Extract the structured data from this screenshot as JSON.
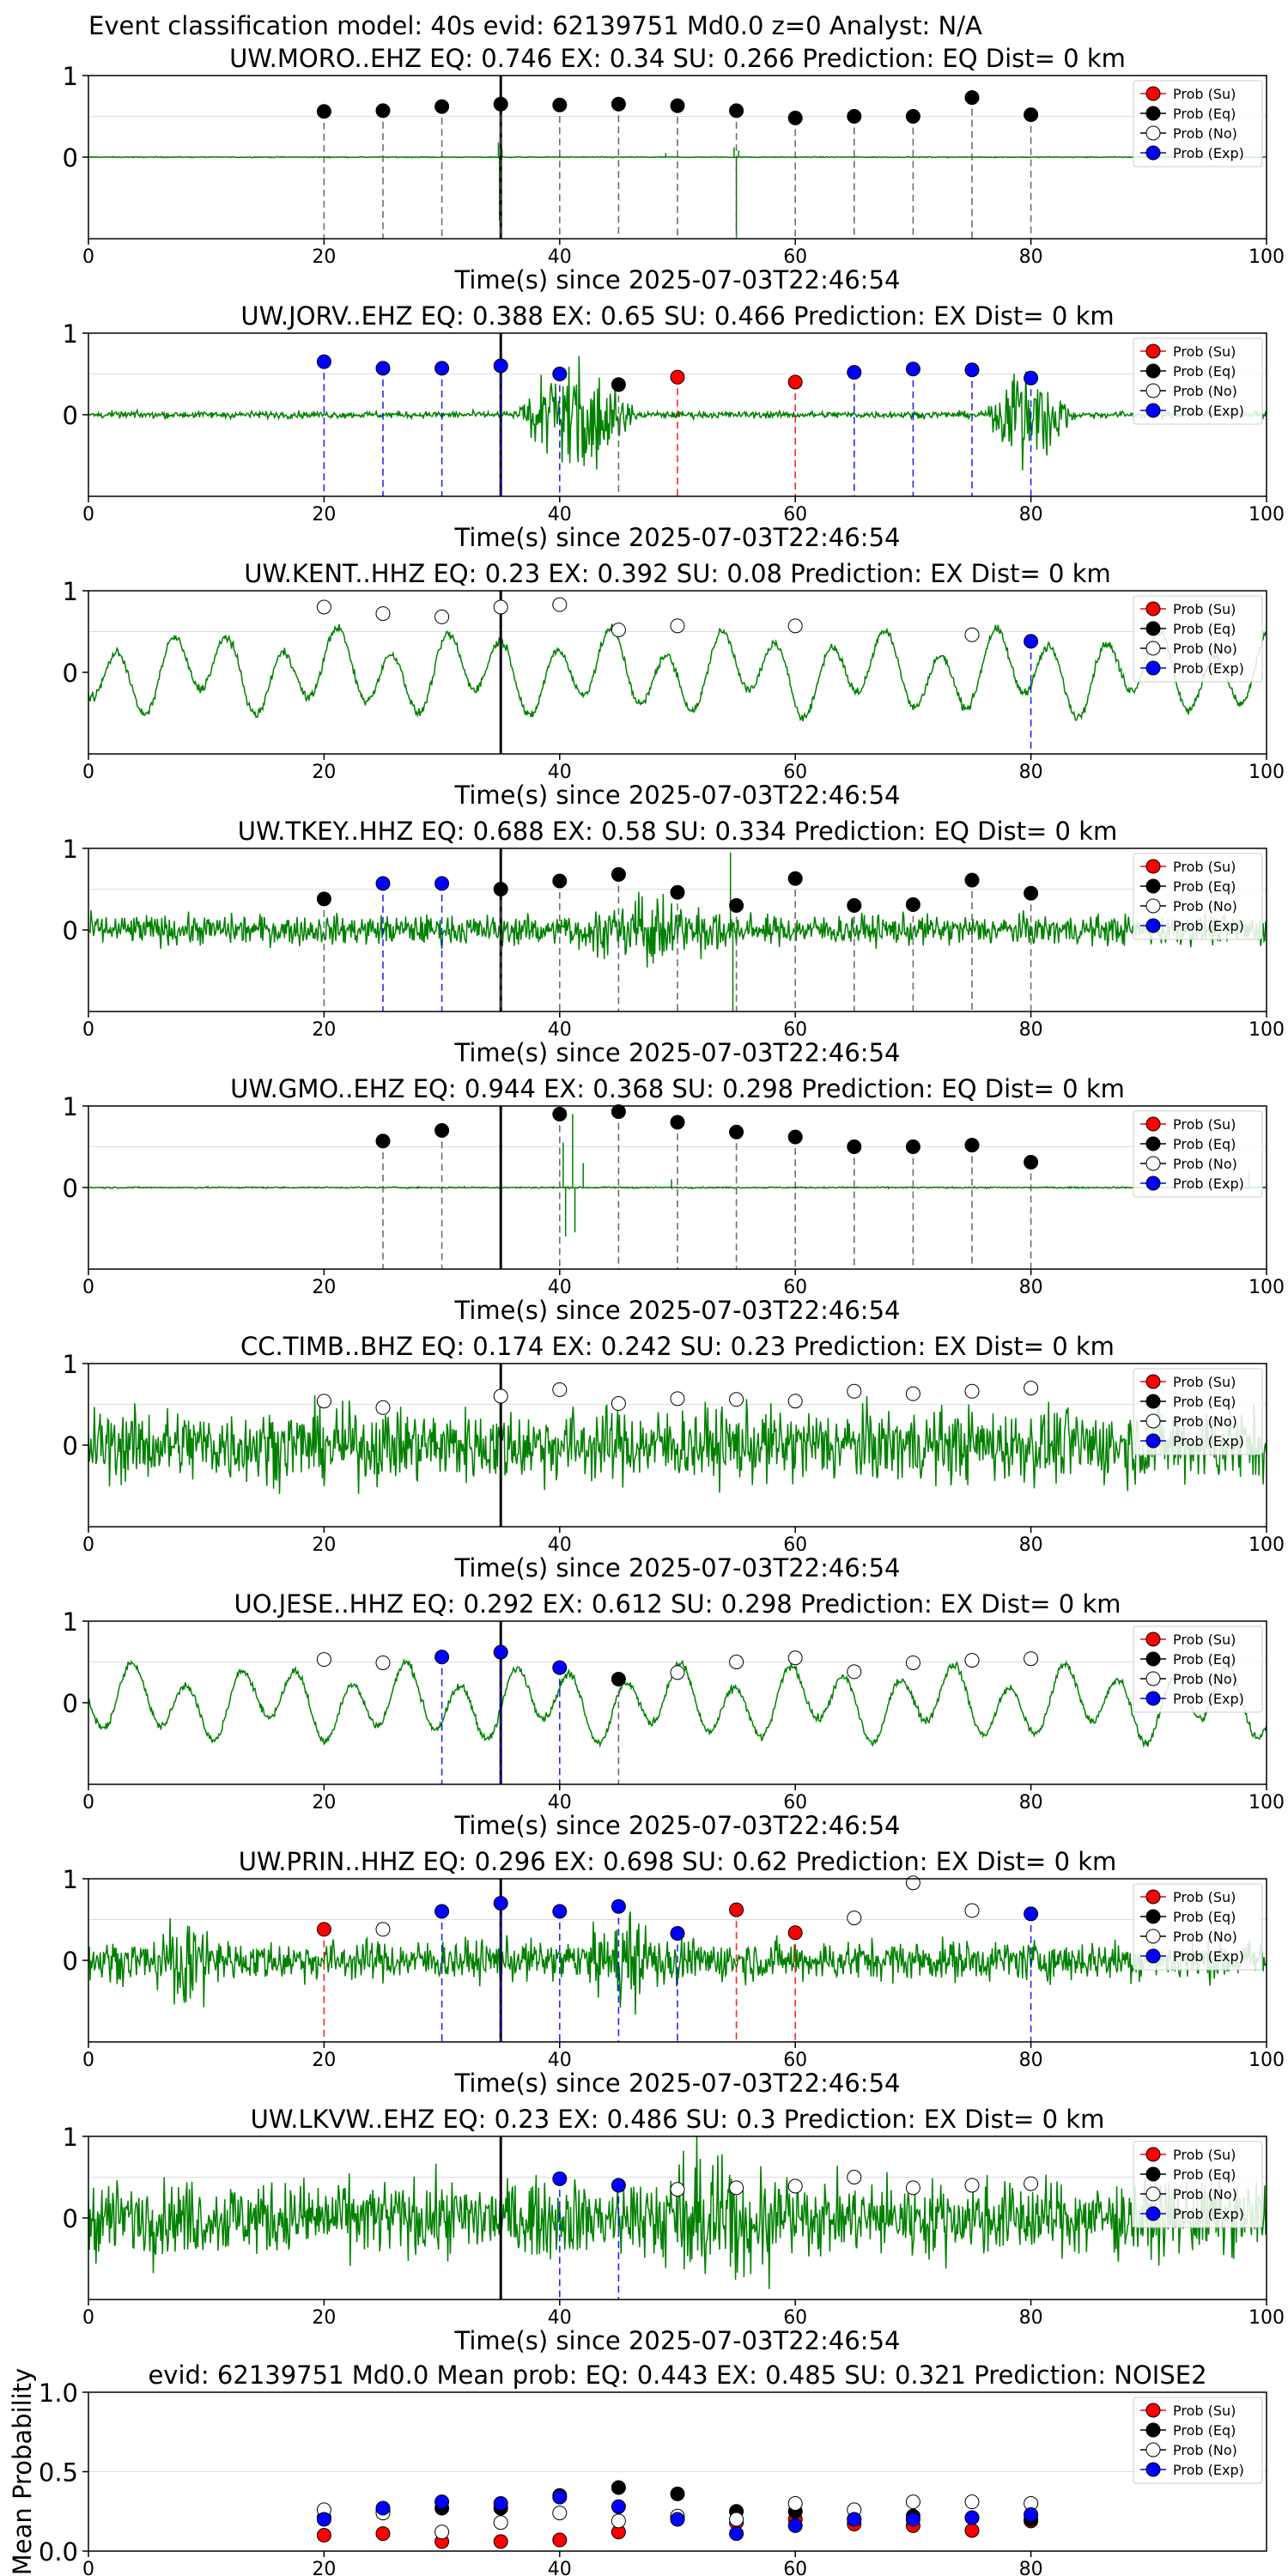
{
  "figure": {
    "suptitle": "Event classification model: 40s evid: 62139751 Md0.0 z=0 Analyst: N/A"
  },
  "legend": [
    "Prob (Su)",
    "Prob (Eq)",
    "Prob (No)",
    "Prob (Exp)"
  ],
  "colors": {
    "trace": "#008000",
    "su": "#ff0000",
    "eq": "#000000",
    "no": "#ffffff",
    "exp": "#0000ff",
    "origin_line": "#000000",
    "grid": "#dddddd"
  },
  "chart_data": [
    {
      "type": "scatter",
      "title": "UW.MORO..EHZ   EQ: 0.746  EX: 0.34  SU: 0.266   Prediction: EQ    Dist= 0 km",
      "xlabel": "Time(s) since 2025-07-03T22:46:54",
      "xlim": [
        0,
        100
      ],
      "ylim": [
        -1,
        1
      ],
      "xticks": [
        "0",
        "20",
        "40",
        "60",
        "80",
        "100"
      ],
      "yticks": [
        "0",
        "1"
      ],
      "origin_time": 35,
      "trace": {
        "style": "quiet",
        "amplitude": 0.01,
        "spikes": [
          [
            34.8,
            0.18
          ],
          [
            34.9,
            -0.78
          ],
          [
            35.1,
            0.1
          ],
          [
            54.8,
            0.12
          ],
          [
            55.0,
            -0.95
          ],
          [
            55.2,
            0.08
          ],
          [
            49.0,
            0.05
          ],
          [
            40.0,
            0.03
          ]
        ]
      },
      "points": [
        {
          "x": 20,
          "y": 0.56,
          "class": "eq"
        },
        {
          "x": 25,
          "y": 0.57,
          "class": "eq"
        },
        {
          "x": 30,
          "y": 0.62,
          "class": "eq"
        },
        {
          "x": 35,
          "y": 0.65,
          "class": "eq"
        },
        {
          "x": 40,
          "y": 0.64,
          "class": "eq"
        },
        {
          "x": 45,
          "y": 0.65,
          "class": "eq"
        },
        {
          "x": 50,
          "y": 0.63,
          "class": "eq"
        },
        {
          "x": 55,
          "y": 0.57,
          "class": "eq"
        },
        {
          "x": 60,
          "y": 0.48,
          "class": "eq"
        },
        {
          "x": 65,
          "y": 0.5,
          "class": "eq"
        },
        {
          "x": 70,
          "y": 0.5,
          "class": "eq"
        },
        {
          "x": 75,
          "y": 0.73,
          "class": "eq"
        },
        {
          "x": 80,
          "y": 0.52,
          "class": "eq"
        }
      ]
    },
    {
      "type": "scatter",
      "title": "UW.JORV..EHZ   EQ: 0.388  EX: 0.65  SU: 0.466   Prediction: EX    Dist= 0 km",
      "xlabel": "Time(s) since 2025-07-03T22:46:54",
      "xlim": [
        0,
        100
      ],
      "ylim": [
        -1,
        1
      ],
      "xticks": [
        "0",
        "20",
        "40",
        "60",
        "80",
        "100"
      ],
      "yticks": [
        "0",
        "1"
      ],
      "origin_time": 35,
      "trace": {
        "style": "bursts",
        "amplitude": 0.05,
        "bursts": [
          [
            36,
            47,
            0.9
          ],
          [
            76,
            84,
            0.85
          ]
        ]
      },
      "points": [
        {
          "x": 20,
          "y": 0.65,
          "class": "exp"
        },
        {
          "x": 25,
          "y": 0.57,
          "class": "exp"
        },
        {
          "x": 30,
          "y": 0.57,
          "class": "exp"
        },
        {
          "x": 35,
          "y": 0.6,
          "class": "exp"
        },
        {
          "x": 40,
          "y": 0.5,
          "class": "exp"
        },
        {
          "x": 45,
          "y": 0.37,
          "class": "eq"
        },
        {
          "x": 50,
          "y": 0.46,
          "class": "su"
        },
        {
          "x": 60,
          "y": 0.4,
          "class": "su"
        },
        {
          "x": 65,
          "y": 0.52,
          "class": "exp"
        },
        {
          "x": 70,
          "y": 0.56,
          "class": "exp"
        },
        {
          "x": 75,
          "y": 0.55,
          "class": "exp"
        },
        {
          "x": 80,
          "y": 0.45,
          "class": "exp"
        }
      ]
    },
    {
      "type": "scatter",
      "title": "UW.KENT..HHZ   EQ: 0.23  EX: 0.392  SU: 0.08   Prediction: EX    Dist= 0 km",
      "xlabel": "Time(s) since 2025-07-03T22:46:54",
      "xlim": [
        0,
        100
      ],
      "ylim": [
        -1,
        1
      ],
      "xticks": [
        "0",
        "20",
        "40",
        "60",
        "80",
        "100"
      ],
      "yticks": [
        "0",
        "1"
      ],
      "origin_time": 35,
      "trace": {
        "style": "microseism",
        "amplitude": 0.5
      },
      "points": [
        {
          "x": 20,
          "y": 0.8,
          "class": "no"
        },
        {
          "x": 25,
          "y": 0.72,
          "class": "no"
        },
        {
          "x": 30,
          "y": 0.68,
          "class": "no"
        },
        {
          "x": 35,
          "y": 0.8,
          "class": "no"
        },
        {
          "x": 40,
          "y": 0.83,
          "class": "no"
        },
        {
          "x": 45,
          "y": 0.52,
          "class": "no"
        },
        {
          "x": 50,
          "y": 0.57,
          "class": "no"
        },
        {
          "x": 60,
          "y": 0.57,
          "class": "no"
        },
        {
          "x": 75,
          "y": 0.46,
          "class": "no"
        },
        {
          "x": 80,
          "y": 0.38,
          "class": "exp"
        }
      ]
    },
    {
      "type": "scatter",
      "title": "UW.TKEY..HHZ   EQ: 0.688  EX: 0.58  SU: 0.334   Prediction: EQ    Dist= 0 km",
      "xlabel": "Time(s) since 2025-07-03T22:46:54",
      "xlim": [
        0,
        100
      ],
      "ylim": [
        -1,
        1
      ],
      "xticks": [
        "0",
        "20",
        "40",
        "60",
        "80",
        "100"
      ],
      "yticks": [
        "0",
        "1"
      ],
      "origin_time": 35,
      "trace": {
        "style": "noisy",
        "amplitude": 0.22,
        "bursts": [
          [
            38,
            58,
            0.45
          ]
        ],
        "spikes": [
          [
            54.5,
            0.95
          ],
          [
            54.7,
            -1.0
          ]
        ]
      },
      "points": [
        {
          "x": 20,
          "y": 0.38,
          "class": "eq"
        },
        {
          "x": 25,
          "y": 0.57,
          "class": "exp"
        },
        {
          "x": 30,
          "y": 0.57,
          "class": "exp"
        },
        {
          "x": 35,
          "y": 0.5,
          "class": "eq"
        },
        {
          "x": 40,
          "y": 0.6,
          "class": "eq"
        },
        {
          "x": 45,
          "y": 0.68,
          "class": "eq"
        },
        {
          "x": 50,
          "y": 0.46,
          "class": "eq"
        },
        {
          "x": 55,
          "y": 0.3,
          "class": "eq"
        },
        {
          "x": 60,
          "y": 0.63,
          "class": "eq"
        },
        {
          "x": 65,
          "y": 0.3,
          "class": "eq"
        },
        {
          "x": 70,
          "y": 0.31,
          "class": "eq"
        },
        {
          "x": 75,
          "y": 0.61,
          "class": "eq"
        },
        {
          "x": 80,
          "y": 0.45,
          "class": "eq"
        }
      ]
    },
    {
      "type": "scatter",
      "title": "UW.GMO..EHZ   EQ: 0.944  EX: 0.368  SU: 0.298   Prediction: EQ    Dist= 0 km",
      "xlabel": "Time(s) since 2025-07-03T22:46:54",
      "xlim": [
        0,
        100
      ],
      "ylim": [
        -1,
        1
      ],
      "xticks": [
        "0",
        "20",
        "40",
        "60",
        "80",
        "100"
      ],
      "yticks": [
        "0",
        "1"
      ],
      "origin_time": 35,
      "trace": {
        "style": "quiet",
        "amplitude": 0.015,
        "spikes": [
          [
            40.3,
            0.55
          ],
          [
            40.5,
            -0.6
          ],
          [
            41.1,
            0.9
          ],
          [
            41.3,
            -0.55
          ],
          [
            42.0,
            0.3
          ],
          [
            49.5,
            0.1
          ],
          [
            98.5,
            0.2
          ]
        ]
      },
      "points": [
        {
          "x": 25,
          "y": 0.57,
          "class": "eq"
        },
        {
          "x": 30,
          "y": 0.7,
          "class": "eq"
        },
        {
          "x": 40,
          "y": 0.9,
          "class": "eq"
        },
        {
          "x": 45,
          "y": 0.93,
          "class": "eq"
        },
        {
          "x": 50,
          "y": 0.8,
          "class": "eq"
        },
        {
          "x": 55,
          "y": 0.68,
          "class": "eq"
        },
        {
          "x": 60,
          "y": 0.62,
          "class": "eq"
        },
        {
          "x": 65,
          "y": 0.5,
          "class": "eq"
        },
        {
          "x": 70,
          "y": 0.5,
          "class": "eq"
        },
        {
          "x": 75,
          "y": 0.52,
          "class": "eq"
        },
        {
          "x": 80,
          "y": 0.31,
          "class": "eq"
        }
      ]
    },
    {
      "type": "scatter",
      "title": "CC.TIMB..BHZ   EQ: 0.174  EX: 0.242  SU: 0.23   Prediction: EX    Dist= 0 km",
      "xlabel": "Time(s) since 2025-07-03T22:46:54",
      "xlim": [
        0,
        100
      ],
      "ylim": [
        -1,
        1
      ],
      "xticks": [
        "0",
        "20",
        "40",
        "60",
        "80",
        "100"
      ],
      "yticks": [
        "0",
        "1"
      ],
      "origin_time": 35,
      "trace": {
        "style": "noisy",
        "amplitude": 0.55
      },
      "points": [
        {
          "x": 20,
          "y": 0.54,
          "class": "no"
        },
        {
          "x": 25,
          "y": 0.46,
          "class": "no"
        },
        {
          "x": 35,
          "y": 0.6,
          "class": "no"
        },
        {
          "x": 40,
          "y": 0.68,
          "class": "no"
        },
        {
          "x": 45,
          "y": 0.51,
          "class": "no"
        },
        {
          "x": 50,
          "y": 0.57,
          "class": "no"
        },
        {
          "x": 55,
          "y": 0.56,
          "class": "no"
        },
        {
          "x": 60,
          "y": 0.54,
          "class": "no"
        },
        {
          "x": 65,
          "y": 0.66,
          "class": "no"
        },
        {
          "x": 70,
          "y": 0.63,
          "class": "no"
        },
        {
          "x": 75,
          "y": 0.66,
          "class": "no"
        },
        {
          "x": 80,
          "y": 0.7,
          "class": "no"
        }
      ]
    },
    {
      "type": "scatter",
      "title": "UO.JESE..HHZ   EQ: 0.292  EX: 0.612  SU: 0.298   Prediction: EX    Dist= 0 km",
      "xlabel": "Time(s) since 2025-07-03T22:46:54",
      "xlim": [
        0,
        100
      ],
      "ylim": [
        -1,
        1
      ],
      "xticks": [
        "0",
        "20",
        "40",
        "60",
        "80",
        "100"
      ],
      "yticks": [
        "0",
        "1"
      ],
      "origin_time": 35,
      "trace": {
        "style": "microseism",
        "amplitude": 0.45
      },
      "points": [
        {
          "x": 20,
          "y": 0.53,
          "class": "no"
        },
        {
          "x": 25,
          "y": 0.49,
          "class": "no"
        },
        {
          "x": 30,
          "y": 0.56,
          "class": "exp"
        },
        {
          "x": 35,
          "y": 0.62,
          "class": "exp"
        },
        {
          "x": 40,
          "y": 0.43,
          "class": "exp"
        },
        {
          "x": 45,
          "y": 0.29,
          "class": "eq"
        },
        {
          "x": 50,
          "y": 0.37,
          "class": "no"
        },
        {
          "x": 55,
          "y": 0.5,
          "class": "no"
        },
        {
          "x": 60,
          "y": 0.55,
          "class": "no"
        },
        {
          "x": 65,
          "y": 0.38,
          "class": "no"
        },
        {
          "x": 70,
          "y": 0.49,
          "class": "no"
        },
        {
          "x": 75,
          "y": 0.52,
          "class": "no"
        },
        {
          "x": 80,
          "y": 0.54,
          "class": "no"
        }
      ]
    },
    {
      "type": "scatter",
      "title": "UW.PRIN..HHZ   EQ: 0.296  EX: 0.698  SU: 0.62   Prediction: EX    Dist= 0 km",
      "xlabel": "Time(s) since 2025-07-03T22:46:54",
      "xlim": [
        0,
        100
      ],
      "ylim": [
        -1,
        1
      ],
      "xticks": [
        "0",
        "20",
        "40",
        "60",
        "80",
        "100"
      ],
      "yticks": [
        "0",
        "1"
      ],
      "origin_time": 35,
      "trace": {
        "style": "noisy",
        "amplitude": 0.3,
        "bursts": [
          [
            5,
            12,
            0.6
          ],
          [
            40,
            52,
            0.55
          ]
        ]
      },
      "points": [
        {
          "x": 20,
          "y": 0.38,
          "class": "su"
        },
        {
          "x": 25,
          "y": 0.38,
          "class": "no"
        },
        {
          "x": 30,
          "y": 0.6,
          "class": "exp"
        },
        {
          "x": 35,
          "y": 0.7,
          "class": "exp"
        },
        {
          "x": 40,
          "y": 0.6,
          "class": "exp"
        },
        {
          "x": 45,
          "y": 0.66,
          "class": "exp"
        },
        {
          "x": 50,
          "y": 0.33,
          "class": "exp"
        },
        {
          "x": 55,
          "y": 0.62,
          "class": "su"
        },
        {
          "x": 60,
          "y": 0.34,
          "class": "su"
        },
        {
          "x": 65,
          "y": 0.52,
          "class": "no"
        },
        {
          "x": 70,
          "y": 0.95,
          "class": "no"
        },
        {
          "x": 75,
          "y": 0.61,
          "class": "no"
        },
        {
          "x": 80,
          "y": 0.57,
          "class": "exp"
        }
      ]
    },
    {
      "type": "scatter",
      "title": "UW.LKVW..EHZ   EQ: 0.23  EX: 0.486  SU: 0.3   Prediction: EX    Dist= 0 km",
      "xlabel": "Time(s) since 2025-07-03T22:46:54",
      "xlim": [
        0,
        100
      ],
      "ylim": [
        -1,
        1
      ],
      "xticks": [
        "0",
        "20",
        "40",
        "60",
        "80",
        "100"
      ],
      "yticks": [
        "0",
        "1"
      ],
      "origin_time": 35,
      "trace": {
        "style": "dense",
        "amplitude": 0.55,
        "bursts": [
          [
            45,
            62,
            0.85
          ]
        ]
      },
      "points": [
        {
          "x": 40,
          "y": 0.48,
          "class": "exp"
        },
        {
          "x": 45,
          "y": 0.4,
          "class": "exp"
        },
        {
          "x": 50,
          "y": 0.35,
          "class": "no"
        },
        {
          "x": 55,
          "y": 0.37,
          "class": "no"
        },
        {
          "x": 60,
          "y": 0.39,
          "class": "no"
        },
        {
          "x": 65,
          "y": 0.5,
          "class": "no"
        },
        {
          "x": 70,
          "y": 0.37,
          "class": "no"
        },
        {
          "x": 75,
          "y": 0.4,
          "class": "no"
        },
        {
          "x": 80,
          "y": 0.42,
          "class": "no"
        }
      ]
    },
    {
      "type": "scatter",
      "title": "evid: 62139751  Md0.0   Mean prob:    EQ: 0.443  EX: 0.485  SU: 0.321   Prediction: NOISE2",
      "xlabel": "",
      "ylabel": "Mean Probability",
      "xlim": [
        0,
        100
      ],
      "ylim": [
        0,
        1
      ],
      "xticks": [
        "0",
        "20",
        "40",
        "60",
        "80"
      ],
      "yticks": [
        "0.0",
        "0.5",
        "1.0"
      ],
      "x": [
        20,
        25,
        30,
        35,
        40,
        45,
        50,
        55,
        60,
        65,
        70,
        75,
        80
      ],
      "series": [
        {
          "class": "su",
          "values": [
            0.1,
            0.11,
            0.06,
            0.06,
            0.07,
            0.12,
            0.21,
            0.18,
            0.2,
            0.17,
            0.16,
            0.13,
            0.19
          ]
        },
        {
          "class": "eq",
          "values": [
            0.21,
            0.25,
            0.27,
            0.27,
            0.35,
            0.4,
            0.36,
            0.25,
            0.25,
            0.2,
            0.22,
            0.21,
            0.2
          ]
        },
        {
          "class": "no",
          "values": [
            0.26,
            0.24,
            0.12,
            0.18,
            0.24,
            0.19,
            0.22,
            0.2,
            0.3,
            0.26,
            0.31,
            0.31,
            0.3
          ]
        },
        {
          "class": "exp",
          "values": [
            0.2,
            0.27,
            0.31,
            0.3,
            0.34,
            0.28,
            0.2,
            0.11,
            0.16,
            0.2,
            0.2,
            0.21,
            0.23
          ]
        }
      ]
    }
  ]
}
